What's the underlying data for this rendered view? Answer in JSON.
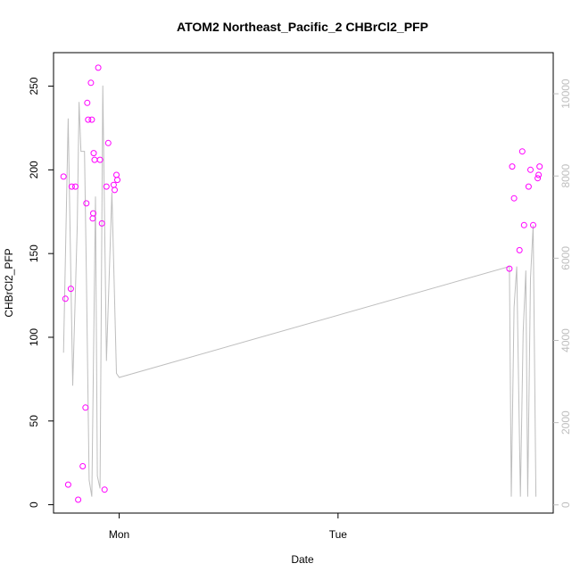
{
  "chart_data": {
    "type": "scatter",
    "title": "ATOM2 Northeast_Pacific_2 CHBrCl2_PFP",
    "xlabel": "Date",
    "ylabel": "CHBrCl2_PFP",
    "x_ticks": [
      {
        "label": "Mon",
        "hour": 0
      },
      {
        "label": "Tue",
        "hour": 24
      }
    ],
    "xlim_hours": [
      -7.2,
      47.6
    ],
    "ylim": [
      -5,
      270
    ],
    "y_ticks": [
      0,
      50,
      100,
      150,
      200,
      250
    ],
    "y2lim": [
      -200,
      11000
    ],
    "y2_ticks": [
      0,
      2000,
      4000,
      6000,
      8000,
      10000
    ],
    "grid": false,
    "legend": "none",
    "colors": {
      "points": "#ff00ff",
      "line": "#bebebe"
    },
    "series": [
      {
        "type": "scatter",
        "axis": "left",
        "points": [
          {
            "hour": -6.1,
            "value": 196
          },
          {
            "hour": -5.9,
            "value": 123
          },
          {
            "hour": -5.6,
            "value": 12
          },
          {
            "hour": -5.3,
            "value": 129
          },
          {
            "hour": -5.2,
            "value": 190
          },
          {
            "hour": -4.8,
            "value": 190
          },
          {
            "hour": -4.5,
            "value": 3
          },
          {
            "hour": -4.0,
            "value": 23
          },
          {
            "hour": -3.7,
            "value": 58
          },
          {
            "hour": -3.6,
            "value": 180
          },
          {
            "hour": -3.5,
            "value": 240
          },
          {
            "hour": -3.4,
            "value": 230
          },
          {
            "hour": -3.1,
            "value": 252
          },
          {
            "hour": -3.0,
            "value": 230
          },
          {
            "hour": -2.9,
            "value": 171
          },
          {
            "hour": -2.85,
            "value": 174
          },
          {
            "hour": -2.8,
            "value": 210
          },
          {
            "hour": -2.7,
            "value": 206
          },
          {
            "hour": -2.3,
            "value": 261
          },
          {
            "hour": -2.1,
            "value": 206
          },
          {
            "hour": -1.9,
            "value": 168
          },
          {
            "hour": -1.6,
            "value": 9
          },
          {
            "hour": -1.4,
            "value": 190
          },
          {
            "hour": -1.2,
            "value": 216
          },
          {
            "hour": -0.6,
            "value": 191
          },
          {
            "hour": -0.5,
            "value": 188
          },
          {
            "hour": -0.3,
            "value": 197
          },
          {
            "hour": -0.2,
            "value": 194
          },
          {
            "hour": 42.8,
            "value": 141
          },
          {
            "hour": 43.1,
            "value": 202
          },
          {
            "hour": 43.3,
            "value": 183
          },
          {
            "hour": 43.9,
            "value": 152
          },
          {
            "hour": 44.2,
            "value": 211
          },
          {
            "hour": 44.4,
            "value": 167
          },
          {
            "hour": 44.9,
            "value": 190
          },
          {
            "hour": 45.1,
            "value": 200
          },
          {
            "hour": 45.4,
            "value": 167
          },
          {
            "hour": 45.9,
            "value": 195
          },
          {
            "hour": 46.0,
            "value": 197
          },
          {
            "hour": 46.1,
            "value": 202
          }
        ]
      },
      {
        "type": "line",
        "axis": "right",
        "points": [
          {
            "hour": -6.1,
            "value": 3700
          },
          {
            "hour": -5.6,
            "value": 9400
          },
          {
            "hour": -5.1,
            "value": 2900
          },
          {
            "hour": -4.6,
            "value": 6800
          },
          {
            "hour": -4.4,
            "value": 9800
          },
          {
            "hour": -4.2,
            "value": 8600
          },
          {
            "hour": -3.8,
            "value": 8600
          },
          {
            "hour": -3.6,
            "value": 5600
          },
          {
            "hour": -3.3,
            "value": 600
          },
          {
            "hour": -3.0,
            "value": 200
          },
          {
            "hour": -2.6,
            "value": 7500
          },
          {
            "hour": -2.4,
            "value": 700
          },
          {
            "hour": -2.1,
            "value": 400
          },
          {
            "hour": -1.8,
            "value": 10200
          },
          {
            "hour": -1.4,
            "value": 3500
          },
          {
            "hour": -0.8,
            "value": 7600
          },
          {
            "hour": -0.3,
            "value": 3200
          },
          {
            "hour": 0.0,
            "value": 3100
          },
          {
            "hour": 42.8,
            "value": 5800
          },
          {
            "hour": 43.0,
            "value": 200
          },
          {
            "hour": 43.3,
            "value": 4800
          },
          {
            "hour": 43.6,
            "value": 5800
          },
          {
            "hour": 44.0,
            "value": 200
          },
          {
            "hour": 44.3,
            "value": 4200
          },
          {
            "hour": 44.6,
            "value": 5700
          },
          {
            "hour": 44.8,
            "value": 200
          },
          {
            "hour": 45.1,
            "value": 5500
          },
          {
            "hour": 45.4,
            "value": 6800
          },
          {
            "hour": 45.7,
            "value": 200
          }
        ]
      }
    ]
  }
}
